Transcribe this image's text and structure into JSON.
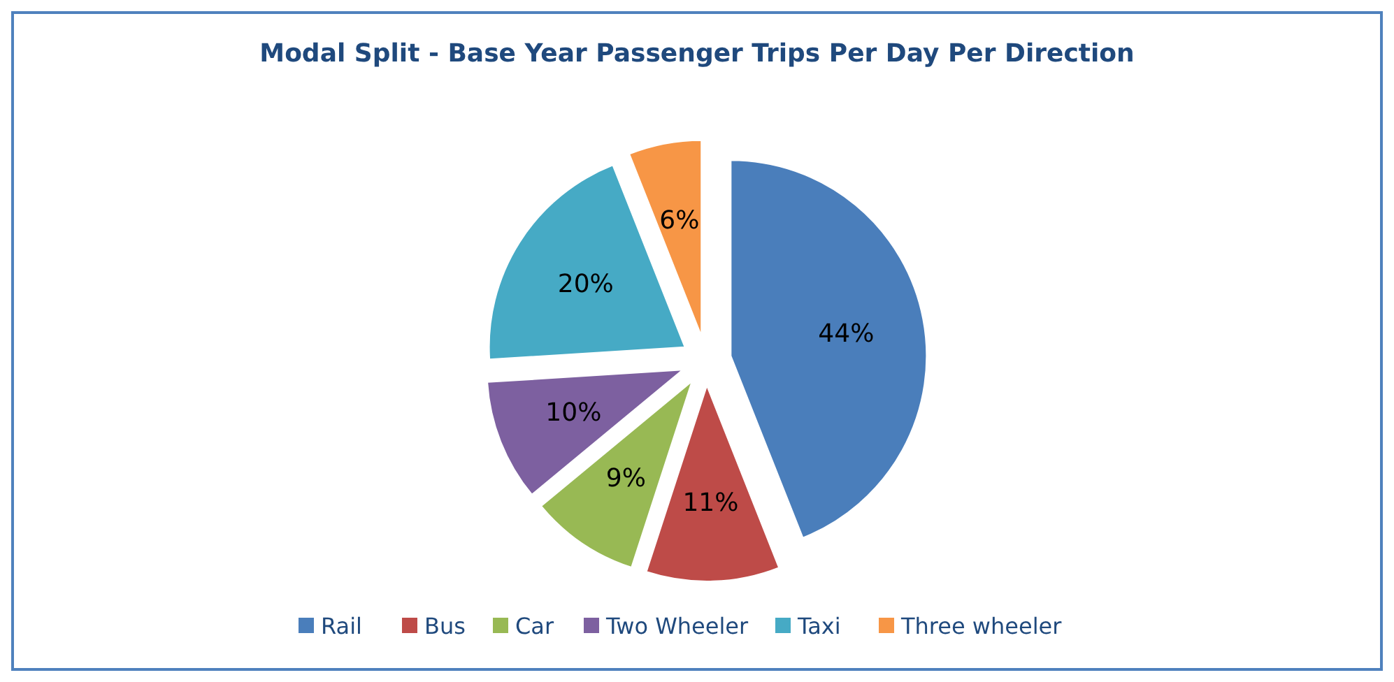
{
  "chart_data": {
    "type": "pie",
    "title": "Modal Split -  Base Year Passenger Trips Per Day Per Direction",
    "categories": [
      "Rail",
      "Bus",
      "Car",
      "Two Wheeler",
      "Taxi",
      "Three wheeler"
    ],
    "values": [
      44,
      11,
      9,
      10,
      20,
      6
    ],
    "colors": [
      "#4a7ebb",
      "#be4b48",
      "#98b954",
      "#7d60a0",
      "#46aac5",
      "#f79646"
    ],
    "value_labels": [
      "44%",
      "11%",
      "9%",
      "10%",
      "20%",
      "6%"
    ],
    "legend": "bottom"
  }
}
